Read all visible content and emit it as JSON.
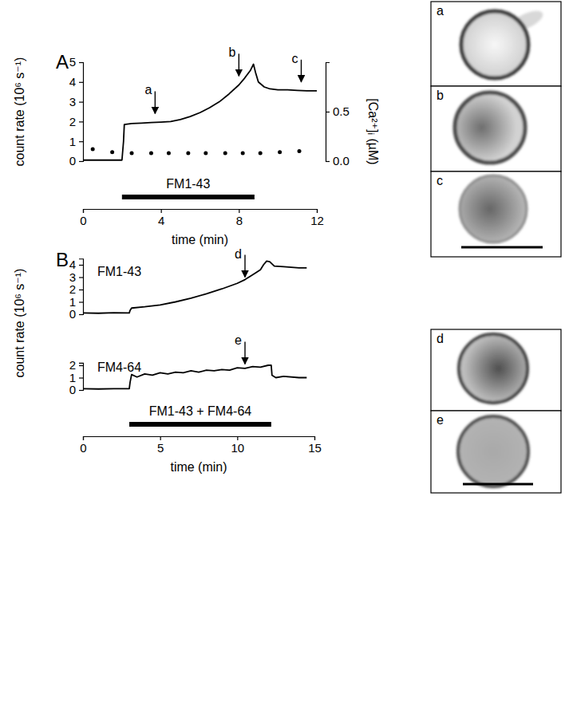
{
  "chart_data": [
    {
      "type": "line",
      "panel": "A",
      "x_label": "time (min)",
      "y_label": "count rate (10⁶ s⁻¹)",
      "y2_label": "[Ca²⁺]ᵢ (µM)",
      "xlim": [
        0,
        12
      ],
      "xticks": [
        0,
        4,
        8,
        12
      ],
      "ylim": [
        0,
        5
      ],
      "yticks": [
        0,
        1,
        2,
        3,
        4,
        5
      ],
      "y2lim": [
        0,
        1.0
      ],
      "y2ticks": [
        {
          "value": 0,
          "label": "0.0"
        },
        0.5
      ],
      "series": [
        {
          "color": "#000000",
          "x": [
            0,
            0.5,
            1,
            1.5,
            2,
            2.08,
            2.12,
            2.5,
            3,
            3.5,
            4,
            4.5,
            5,
            5.5,
            6,
            6.5,
            7,
            7.5,
            8,
            8.3,
            8.6,
            8.75,
            8.85,
            9,
            9.3,
            9.6,
            10,
            10.5,
            11,
            11.5,
            12
          ],
          "values": [
            0.05,
            0.05,
            0.05,
            0.05,
            0.05,
            1.0,
            1.85,
            1.9,
            1.92,
            1.95,
            1.97,
            2.0,
            2.1,
            2.25,
            2.45,
            2.7,
            3.0,
            3.4,
            3.85,
            4.2,
            4.6,
            4.9,
            4.5,
            4.0,
            3.75,
            3.65,
            3.6,
            3.6,
            3.57,
            3.55,
            3.55
          ]
        },
        {
          "type": "scatter",
          "marker": "dot",
          "axis": "y2",
          "color": "#000000",
          "x": [
            0.5,
            1.5,
            2.5,
            3.5,
            4.4,
            5.4,
            6.3,
            7.3,
            8.2,
            9.1,
            10.1,
            11.1
          ],
          "values": [
            0.12,
            0.09,
            0.08,
            0.08,
            0.08,
            0.08,
            0.08,
            0.08,
            0.08,
            0.08,
            0.09,
            0.1
          ]
        }
      ],
      "bar": {
        "label": "FM1-43",
        "x": [
          2,
          8.8
        ]
      },
      "arrows": [
        {
          "label": "a",
          "x": 3.7,
          "y": 2.4
        },
        {
          "label": "b",
          "x": 8.0,
          "y": 4.3
        },
        {
          "label": "c",
          "x": 11.2,
          "y": 4.0
        }
      ]
    },
    {
      "type": "line",
      "panel": "B",
      "y_label": "count rate (10⁶ s⁻¹)",
      "xlim": [
        0,
        15
      ],
      "ylim": [
        0,
        4.5
      ],
      "yticks": [
        0,
        1,
        2,
        3,
        4
      ],
      "tick_labels": "y",
      "series": [
        {
          "name": "FM1-43",
          "color": "#000000",
          "x": [
            0,
            1,
            2,
            3,
            3.05,
            3.15,
            4,
            5,
            6,
            7,
            8,
            9,
            10,
            10.5,
            11,
            11.5,
            11.7,
            11.9,
            12.1,
            12.4,
            13,
            14,
            14.5
          ],
          "values": [
            0.1,
            0.08,
            0.12,
            0.1,
            0.3,
            0.5,
            0.6,
            0.75,
            1.0,
            1.3,
            1.65,
            2.05,
            2.5,
            2.8,
            3.2,
            3.6,
            4.0,
            4.3,
            4.25,
            3.9,
            3.85,
            3.75,
            3.75
          ]
        }
      ],
      "arrows": [
        {
          "label": "d",
          "x": 10.5,
          "y": 3.0
        }
      ]
    },
    {
      "type": "line",
      "x_label": "time (min)",
      "xlim": [
        0,
        15
      ],
      "xticks": [
        0,
        5,
        10,
        15
      ],
      "ylim": [
        0,
        2.2
      ],
      "yticks": [
        0,
        1,
        2
      ],
      "series": [
        {
          "name": "FM4-64",
          "color": "#000000",
          "x": [
            0,
            1,
            2,
            3,
            3.05,
            3.15,
            3.5,
            4,
            4.5,
            5,
            5.5,
            6,
            6.5,
            7,
            7.5,
            8,
            8.5,
            9,
            9.5,
            10,
            10.5,
            11,
            11.5,
            12,
            12.2,
            12.25,
            12.5,
            13,
            14,
            14.5
          ],
          "values": [
            0.1,
            0.08,
            0.1,
            0.1,
            0.6,
            1.25,
            1.05,
            1.3,
            1.2,
            1.4,
            1.3,
            1.45,
            1.4,
            1.55,
            1.45,
            1.6,
            1.55,
            1.65,
            1.6,
            1.8,
            1.75,
            1.9,
            1.85,
            2.0,
            2.0,
            1.2,
            1.0,
            1.1,
            1.0,
            1.0
          ]
        }
      ],
      "bar": {
        "label": "FM1-43 + FM4-64",
        "x": [
          3,
          12.2
        ]
      },
      "arrows": [
        {
          "label": "e",
          "x": 10.5,
          "y": 2.1
        }
      ]
    }
  ],
  "micrographs": [
    "a",
    "b",
    "c",
    "d",
    "e"
  ]
}
